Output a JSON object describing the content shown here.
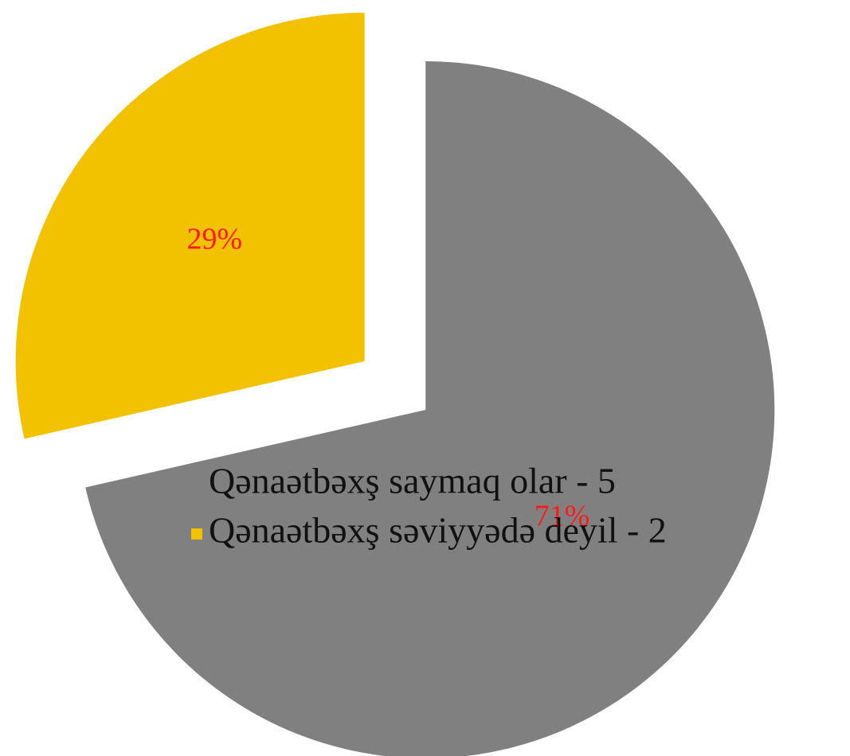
{
  "chart_data": {
    "type": "pie",
    "slices": [
      {
        "label": "Qənaətbəxş saymaq olar - 5",
        "value": 5,
        "percent_label": "71%",
        "color": "#808080"
      },
      {
        "label": "Qənaətbəxş səviyyədə deyil - 2",
        "value": 2,
        "percent_label": "29%",
        "color": "#f2c200"
      }
    ],
    "data_label_color": "#ff1a1a",
    "legend_placement": "center-overlapping"
  }
}
